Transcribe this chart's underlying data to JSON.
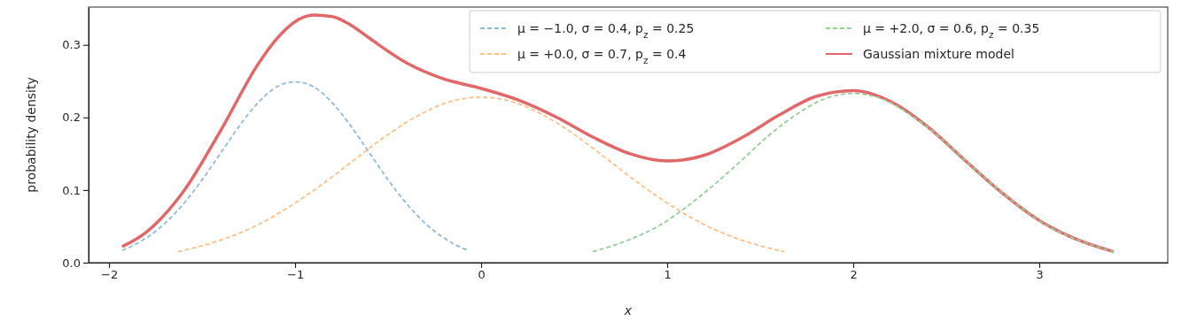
{
  "chart_data": {
    "type": "line",
    "xlabel": "x",
    "ylabel": "probability density",
    "xlim": [
      -2.11,
      3.69
    ],
    "ylim": [
      0,
      0.352
    ],
    "xticks": [
      {
        "value": -2,
        "label": "−2"
      },
      {
        "value": -1,
        "label": "−1"
      },
      0,
      1,
      2,
      3
    ],
    "yticks": [
      {
        "value": 0,
        "label": "0.0"
      },
      {
        "value": 0.1,
        "label": "0.1"
      },
      {
        "value": 0.2,
        "label": "0.2"
      },
      {
        "value": 0.3,
        "label": "0.3"
      }
    ],
    "legend": "top right",
    "grid": false,
    "series": [
      {
        "name": "μ = −1.0, σ = 0.4, p$_{z}$ = 0.25",
        "color": "#8fbbd9",
        "line_style": "dashed",
        "x": [
          -1.93,
          -1.9,
          -1.8,
          -1.7,
          -1.6,
          -1.5,
          -1.4,
          -1.3,
          -1.2,
          -1.1,
          -1.0,
          -0.9,
          -0.8,
          -0.7,
          -0.6,
          -0.5,
          -0.4,
          -0.3,
          -0.2,
          -0.1,
          -0.07
        ],
        "values": [
          0.017,
          0.02,
          0.034,
          0.054,
          0.081,
          0.114,
          0.151,
          0.188,
          0.22,
          0.242,
          0.249,
          0.242,
          0.22,
          0.188,
          0.151,
          0.114,
          0.081,
          0.054,
          0.034,
          0.02,
          0.017
        ]
      },
      {
        "name": "μ = +0.0, σ = 0.7, p$_{z}$ = 0.4",
        "color": "#ffbf86",
        "line_style": "dashed",
        "x": [
          -1.63,
          -1.4,
          -1.225,
          -1.05,
          -0.875,
          -0.7,
          -0.525,
          -0.35,
          -0.175,
          0,
          0.175,
          0.35,
          0.525,
          0.7,
          0.875,
          1.05,
          1.225,
          1.4,
          1.63
        ],
        "values": [
          0.015,
          0.031,
          0.049,
          0.074,
          0.104,
          0.138,
          0.172,
          0.201,
          0.221,
          0.228,
          0.221,
          0.201,
          0.172,
          0.138,
          0.104,
          0.074,
          0.049,
          0.031,
          0.015
        ]
      },
      {
        "name": "μ = +2.0, σ = 0.6, p$_{z}$ = 0.35",
        "color": "#95cf95",
        "line_style": "dashed",
        "x": [
          0.6,
          0.8,
          0.95,
          1.1,
          1.25,
          1.4,
          1.55,
          1.7,
          1.85,
          2.0,
          2.15,
          2.3,
          2.45,
          2.6,
          2.75,
          2.9,
          3.05,
          3.2,
          3.4
        ],
        "values": [
          0.015,
          0.032,
          0.05,
          0.076,
          0.107,
          0.141,
          0.176,
          0.205,
          0.226,
          0.233,
          0.226,
          0.205,
          0.176,
          0.141,
          0.107,
          0.076,
          0.05,
          0.032,
          0.015
        ]
      },
      {
        "name": "Gaussian mixture model",
        "color": "#e26768",
        "line_style": "solid",
        "x": [
          -1.93,
          -1.8,
          -1.6,
          -1.4,
          -1.2,
          -1.1,
          -1.0,
          -0.9,
          -0.8,
          -0.7,
          -0.6,
          -0.4,
          -0.2,
          0,
          0.2,
          0.4,
          0.6,
          0.8,
          1.0,
          1.2,
          1.4,
          1.6,
          1.8,
          2.0,
          2.2,
          2.4,
          2.6,
          2.8,
          3.0,
          3.2,
          3.4
        ],
        "values": [
          0.022,
          0.042,
          0.098,
          0.182,
          0.273,
          0.308,
          0.332,
          0.341,
          0.339,
          0.327,
          0.309,
          0.275,
          0.253,
          0.24,
          0.224,
          0.201,
          0.173,
          0.15,
          0.14,
          0.148,
          0.172,
          0.203,
          0.229,
          0.237,
          0.222,
          0.187,
          0.141,
          0.096,
          0.058,
          0.032,
          0.015
        ]
      }
    ]
  }
}
